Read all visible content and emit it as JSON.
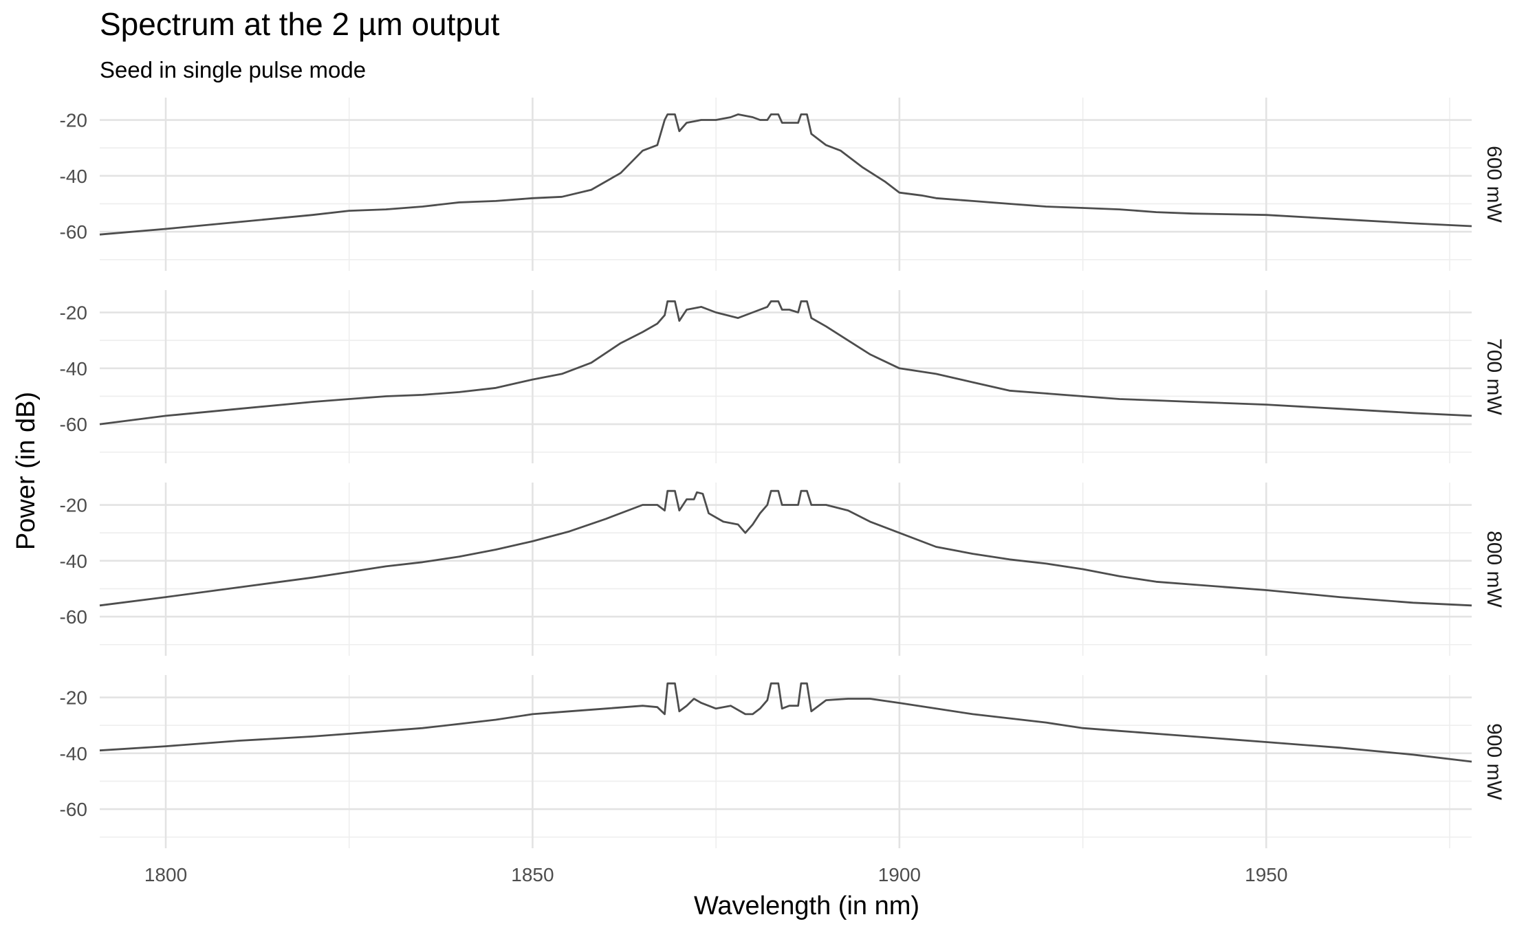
{
  "chart_data": {
    "type": "line",
    "title": "Spectrum at the 2 µm output",
    "subtitle": "Seed in single pulse mode",
    "xlabel": "Wavelength (in nm)",
    "ylabel": "Power (in dB)",
    "xlim": [
      1791,
      1978
    ],
    "ylim": [
      -74,
      -12
    ],
    "x_ticks": [
      1800,
      1850,
      1900,
      1950
    ],
    "y_ticks": [
      -20,
      -40,
      -60
    ],
    "grid": true,
    "facet_direction": "rows",
    "panels": [
      {
        "label": "600 mW",
        "points": [
          [
            1791,
            -61
          ],
          [
            1800,
            -59
          ],
          [
            1810,
            -56.5
          ],
          [
            1820,
            -54
          ],
          [
            1825,
            -52.5
          ],
          [
            1830,
            -52
          ],
          [
            1835,
            -51
          ],
          [
            1840,
            -49.5
          ],
          [
            1845,
            -49
          ],
          [
            1850,
            -48
          ],
          [
            1854,
            -47.5
          ],
          [
            1858,
            -45
          ],
          [
            1862,
            -39
          ],
          [
            1865,
            -31
          ],
          [
            1867,
            -29
          ],
          [
            1868,
            -20
          ],
          [
            1868.4,
            -18
          ],
          [
            1869.4,
            -18
          ],
          [
            1870,
            -24
          ],
          [
            1871,
            -21
          ],
          [
            1873,
            -20
          ],
          [
            1875,
            -20
          ],
          [
            1877,
            -19
          ],
          [
            1878,
            -18
          ],
          [
            1880,
            -19
          ],
          [
            1881,
            -20
          ],
          [
            1882,
            -20
          ],
          [
            1882.5,
            -18
          ],
          [
            1883.5,
            -18
          ],
          [
            1884,
            -21
          ],
          [
            1885,
            -21
          ],
          [
            1886.2,
            -21
          ],
          [
            1886.6,
            -18
          ],
          [
            1887.4,
            -18
          ],
          [
            1888,
            -25
          ],
          [
            1890,
            -29
          ],
          [
            1892,
            -31
          ],
          [
            1895,
            -37
          ],
          [
            1898,
            -42
          ],
          [
            1900,
            -46
          ],
          [
            1903,
            -47
          ],
          [
            1905,
            -48
          ],
          [
            1910,
            -49
          ],
          [
            1915,
            -50
          ],
          [
            1920,
            -51
          ],
          [
            1925,
            -51.5
          ],
          [
            1930,
            -52
          ],
          [
            1935,
            -53
          ],
          [
            1940,
            -53.5
          ],
          [
            1950,
            -54
          ],
          [
            1960,
            -55.5
          ],
          [
            1970,
            -57
          ],
          [
            1978,
            -58
          ]
        ]
      },
      {
        "label": "700 mW",
        "points": [
          [
            1791,
            -60
          ],
          [
            1800,
            -57
          ],
          [
            1810,
            -54.5
          ],
          [
            1820,
            -52
          ],
          [
            1825,
            -51
          ],
          [
            1830,
            -50
          ],
          [
            1835,
            -49.5
          ],
          [
            1840,
            -48.5
          ],
          [
            1845,
            -47
          ],
          [
            1850,
            -44
          ],
          [
            1854,
            -42
          ],
          [
            1858,
            -38
          ],
          [
            1862,
            -31
          ],
          [
            1865,
            -27
          ],
          [
            1867,
            -24
          ],
          [
            1868,
            -21
          ],
          [
            1868.4,
            -16
          ],
          [
            1869.4,
            -16
          ],
          [
            1870,
            -23
          ],
          [
            1871,
            -19
          ],
          [
            1873,
            -18
          ],
          [
            1875,
            -20
          ],
          [
            1878,
            -22
          ],
          [
            1880,
            -20
          ],
          [
            1882,
            -18
          ],
          [
            1882.5,
            -16
          ],
          [
            1883.5,
            -16
          ],
          [
            1884,
            -19
          ],
          [
            1885,
            -19
          ],
          [
            1886.2,
            -20
          ],
          [
            1886.6,
            -16
          ],
          [
            1887.4,
            -16
          ],
          [
            1888,
            -22
          ],
          [
            1890,
            -25
          ],
          [
            1893,
            -30
          ],
          [
            1896,
            -35
          ],
          [
            1900,
            -40
          ],
          [
            1905,
            -42
          ],
          [
            1910,
            -45
          ],
          [
            1915,
            -48
          ],
          [
            1920,
            -49
          ],
          [
            1925,
            -50
          ],
          [
            1930,
            -51
          ],
          [
            1935,
            -51.5
          ],
          [
            1940,
            -52
          ],
          [
            1950,
            -53
          ],
          [
            1960,
            -54.5
          ],
          [
            1970,
            -56
          ],
          [
            1978,
            -57
          ]
        ]
      },
      {
        "label": "800 mW",
        "points": [
          [
            1791,
            -56
          ],
          [
            1800,
            -53
          ],
          [
            1810,
            -49.5
          ],
          [
            1820,
            -46
          ],
          [
            1825,
            -44
          ],
          [
            1830,
            -42
          ],
          [
            1835,
            -40.5
          ],
          [
            1840,
            -38.5
          ],
          [
            1845,
            -36
          ],
          [
            1850,
            -33
          ],
          [
            1855,
            -29.5
          ],
          [
            1860,
            -25
          ],
          [
            1865,
            -20
          ],
          [
            1867,
            -20
          ],
          [
            1868,
            -22
          ],
          [
            1868.4,
            -15
          ],
          [
            1869.4,
            -15
          ],
          [
            1870,
            -22
          ],
          [
            1871,
            -18
          ],
          [
            1872,
            -18
          ],
          [
            1872.4,
            -15.5
          ],
          [
            1873.2,
            -16
          ],
          [
            1874,
            -23
          ],
          [
            1876,
            -26
          ],
          [
            1878,
            -27
          ],
          [
            1879,
            -30
          ],
          [
            1880,
            -27
          ],
          [
            1881,
            -23
          ],
          [
            1882,
            -20
          ],
          [
            1882.5,
            -15
          ],
          [
            1883.5,
            -15
          ],
          [
            1884,
            -20
          ],
          [
            1885,
            -20
          ],
          [
            1886.2,
            -20
          ],
          [
            1886.6,
            -15
          ],
          [
            1887.4,
            -15
          ],
          [
            1888,
            -20
          ],
          [
            1890,
            -20
          ],
          [
            1893,
            -22
          ],
          [
            1896,
            -26
          ],
          [
            1900,
            -30
          ],
          [
            1905,
            -35
          ],
          [
            1910,
            -37.5
          ],
          [
            1915,
            -39.5
          ],
          [
            1920,
            -41
          ],
          [
            1925,
            -43
          ],
          [
            1930,
            -45.5
          ],
          [
            1935,
            -47.5
          ],
          [
            1940,
            -48.5
          ],
          [
            1950,
            -50.5
          ],
          [
            1960,
            -53
          ],
          [
            1970,
            -55
          ],
          [
            1978,
            -56
          ]
        ]
      },
      {
        "label": "900 mW",
        "points": [
          [
            1791,
            -39
          ],
          [
            1800,
            -37.5
          ],
          [
            1810,
            -35.5
          ],
          [
            1820,
            -34
          ],
          [
            1825,
            -33
          ],
          [
            1830,
            -32
          ],
          [
            1835,
            -31
          ],
          [
            1840,
            -29.5
          ],
          [
            1845,
            -28
          ],
          [
            1850,
            -26
          ],
          [
            1855,
            -25
          ],
          [
            1860,
            -24
          ],
          [
            1865,
            -23
          ],
          [
            1867,
            -23.5
          ],
          [
            1868,
            -26
          ],
          [
            1868.4,
            -15
          ],
          [
            1869.4,
            -15
          ],
          [
            1870,
            -25
          ],
          [
            1871,
            -23
          ],
          [
            1872,
            -20.5
          ],
          [
            1873,
            -22
          ],
          [
            1875,
            -24
          ],
          [
            1877,
            -23
          ],
          [
            1879,
            -26
          ],
          [
            1880,
            -26
          ],
          [
            1881,
            -24
          ],
          [
            1882,
            -21
          ],
          [
            1882.5,
            -15
          ],
          [
            1883.5,
            -15
          ],
          [
            1884,
            -24
          ],
          [
            1885,
            -23
          ],
          [
            1886.2,
            -23
          ],
          [
            1886.6,
            -15
          ],
          [
            1887.4,
            -15
          ],
          [
            1888,
            -25
          ],
          [
            1890,
            -21
          ],
          [
            1893,
            -20.5
          ],
          [
            1896,
            -20.5
          ],
          [
            1900,
            -22
          ],
          [
            1905,
            -24
          ],
          [
            1910,
            -26
          ],
          [
            1915,
            -27.5
          ],
          [
            1920,
            -29
          ],
          [
            1925,
            -31
          ],
          [
            1930,
            -32
          ],
          [
            1935,
            -33
          ],
          [
            1940,
            -34
          ],
          [
            1950,
            -36
          ],
          [
            1960,
            -38
          ],
          [
            1970,
            -40.5
          ],
          [
            1978,
            -43
          ]
        ]
      }
    ]
  }
}
